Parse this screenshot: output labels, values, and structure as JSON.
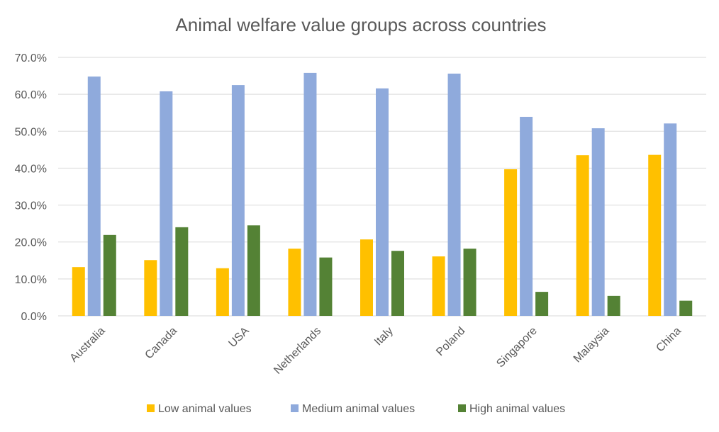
{
  "chart_data": {
    "type": "bar",
    "title": "Animal welfare value groups across countries",
    "xlabel": "",
    "ylabel": "",
    "ylim": [
      0,
      70
    ],
    "yticks": [
      "0.0%",
      "10.0%",
      "20.0%",
      "30.0%",
      "40.0%",
      "50.0%",
      "60.0%",
      "70.0%"
    ],
    "grid": true,
    "legend_position": "bottom",
    "categories": [
      "Australia",
      "Canada",
      "USA",
      "Netherlands",
      "Italy",
      "Poland",
      "Singapore",
      "Malaysia",
      "China"
    ],
    "series": [
      {
        "name": "Low animal values",
        "color": "#ffc000",
        "values": [
          13.2,
          15.1,
          12.9,
          18.2,
          20.7,
          16.1,
          39.7,
          43.5,
          43.6
        ]
      },
      {
        "name": "Medium animal values",
        "color": "#8faadc",
        "values": [
          64.8,
          60.8,
          62.5,
          65.8,
          61.6,
          65.6,
          53.9,
          50.8,
          52.1
        ]
      },
      {
        "name": "High animal values",
        "color": "#548235",
        "values": [
          21.9,
          24.0,
          24.5,
          15.8,
          17.6,
          18.2,
          6.5,
          5.4,
          4.1
        ]
      }
    ]
  }
}
